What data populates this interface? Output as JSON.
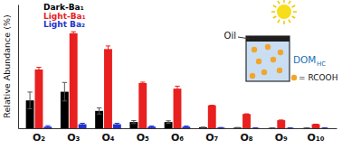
{
  "chart_data": {
    "type": "bar",
    "y_label": "Relative Abundance (%)",
    "categories": [
      "O₂",
      "O₃",
      "O₄",
      "O₅",
      "O₆",
      "O₇",
      "O₈",
      "O₉",
      "O₁₀"
    ],
    "series": [
      {
        "name": "Dark-Ba₁",
        "color": "#000000",
        "values": [
          9,
          11.8,
          5.6,
          2,
          2,
          0.3,
          0.2,
          0.1,
          0.1
        ],
        "errors": [
          2.7,
          3,
          1,
          0.5,
          0.4,
          0,
          0,
          0,
          0
        ]
      },
      {
        "name": "Light-Ba₁",
        "color": "#e8201f",
        "values": [
          19,
          30.7,
          25.6,
          14.6,
          12.8,
          7.4,
          4.6,
          2.6,
          1.3
        ],
        "errors": [
          0.7,
          0.5,
          1,
          0.3,
          0.8,
          0,
          0,
          0,
          0
        ]
      },
      {
        "name": "Light Ba₂",
        "color": "#2233cc",
        "values": [
          0.5,
          1.3,
          1.3,
          0.5,
          0.5,
          0.2,
          0.1,
          0.1,
          0.1
        ],
        "errors": [
          0.3,
          0.3,
          0.3,
          0.2,
          0.2,
          0,
          0,
          0,
          0
        ]
      }
    ],
    "ylim": [
      0,
      40
    ],
    "tick_labels": "x",
    "legend": "upper left",
    "annotations": [
      "Oil",
      "DOM",
      "HC",
      "= RCOOH"
    ]
  }
}
